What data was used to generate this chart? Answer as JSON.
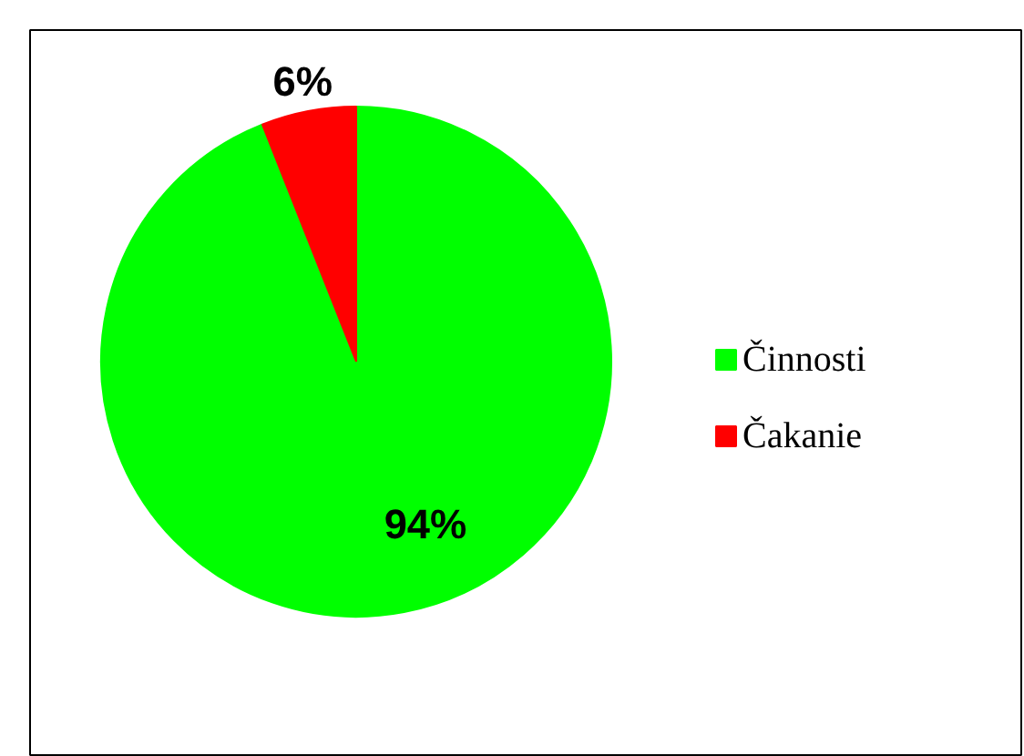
{
  "chart_data": {
    "type": "pie",
    "categories": [
      "Činnosti",
      "Čakanie"
    ],
    "values": [
      94,
      6
    ],
    "colors": [
      "#00ff00",
      "#ff0000"
    ],
    "value_labels": [
      "94%",
      "6%"
    ],
    "legend": "right"
  }
}
